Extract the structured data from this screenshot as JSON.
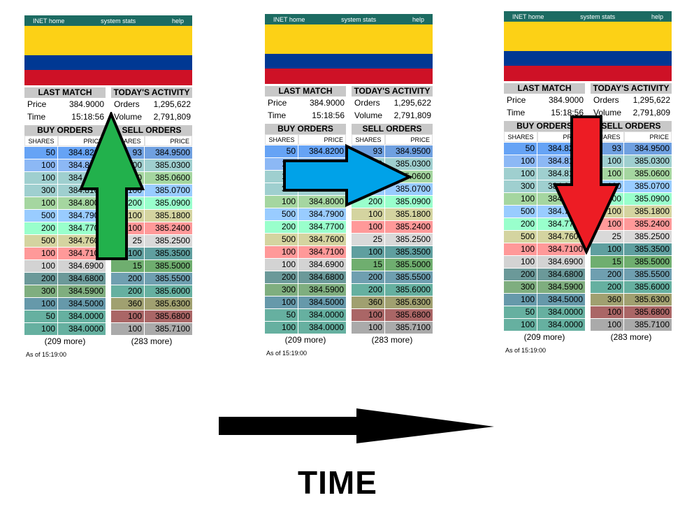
{
  "nav": {
    "home": "INET home",
    "stats": "system stats",
    "help": "help"
  },
  "headers": {
    "last_match": "LAST MATCH",
    "todays_activity": "TODAY'S ACTIVITY",
    "buy_orders": "BUY ORDERS",
    "sell_orders": "SELL ORDERS",
    "shares": "SHARES",
    "price": "PRICE"
  },
  "last_match": {
    "price_label": "Price",
    "price": "384.9000",
    "time_label": "Time",
    "time": "15:18:56"
  },
  "activity": {
    "orders_label": "Orders",
    "orders": "1,295,622",
    "volume_label": "Volume",
    "volume": "2,791,809"
  },
  "buy_orders": [
    {
      "shares": "50",
      "price": "384.8200"
    },
    {
      "shares": "100",
      "price": "384.8100"
    },
    {
      "shares": "100",
      "price": "384.8100"
    },
    {
      "shares": "300",
      "price": "384.8100"
    },
    {
      "shares": "100",
      "price": "384.8000"
    },
    {
      "shares": "500",
      "price": "384.7900"
    },
    {
      "shares": "200",
      "price": "384.7700"
    },
    {
      "shares": "500",
      "price": "384.7600"
    },
    {
      "shares": "100",
      "price": "384.7100"
    },
    {
      "shares": "100",
      "price": "384.6900"
    },
    {
      "shares": "200",
      "price": "384.6800"
    },
    {
      "shares": "300",
      "price": "384.5900"
    },
    {
      "shares": "100",
      "price": "384.5000"
    },
    {
      "shares": "50",
      "price": "384.0000"
    },
    {
      "shares": "100",
      "price": "384.0000"
    }
  ],
  "sell_orders": [
    {
      "shares": "93",
      "price": "384.9500"
    },
    {
      "shares": "100",
      "price": "385.0300"
    },
    {
      "shares": "100",
      "price": "385.0600"
    },
    {
      "shares": "100",
      "price": "385.0700"
    },
    {
      "shares": "200",
      "price": "385.0900"
    },
    {
      "shares": "100",
      "price": "385.1800"
    },
    {
      "shares": "100",
      "price": "385.2400"
    },
    {
      "shares": "25",
      "price": "385.2500"
    },
    {
      "shares": "100",
      "price": "385.3500"
    },
    {
      "shares": "15",
      "price": "385.5000"
    },
    {
      "shares": "200",
      "price": "385.5500"
    },
    {
      "shares": "200",
      "price": "385.6000"
    },
    {
      "shares": "360",
      "price": "385.6300"
    },
    {
      "shares": "100",
      "price": "385.6800"
    },
    {
      "shares": "100",
      "price": "385.7100"
    }
  ],
  "buy_more": "(209 more)",
  "sell_more": "(283 more)",
  "as_of": "As of 15:19:00",
  "time_label": "TIME",
  "colors": {
    "nav": "#1c6b62",
    "flag_yellow": "#fcd116",
    "flag_blue": "#003893",
    "flag_red": "#ce1126",
    "arrow_up": "#22b14c",
    "arrow_right": "#00a2e8",
    "arrow_down": "#ed1c24",
    "buy_rows": [
      "#66a3f5",
      "#8cb8f5",
      "#9fcfcf",
      "#9fcfcf",
      "#a5d6a0",
      "#99ccff",
      "#99ffcc",
      "#d4d4a0",
      "#ff9999",
      "#d3d3d3",
      "#6b9999",
      "#7fae7f",
      "#6699aa",
      "#66b0a0",
      "#66b0a0"
    ],
    "sell_rows": [
      "#6fa0e0",
      "#9fcfcf",
      "#a5d6a0",
      "#99ccff",
      "#99ffcc",
      "#d4d4a0",
      "#ff9999",
      "#d9d9d9",
      "#5f9f9f",
      "#6fae6f",
      "#6f9fb0",
      "#66b0a0",
      "#a0a070",
      "#aa6666",
      "#aaaaaa"
    ]
  }
}
